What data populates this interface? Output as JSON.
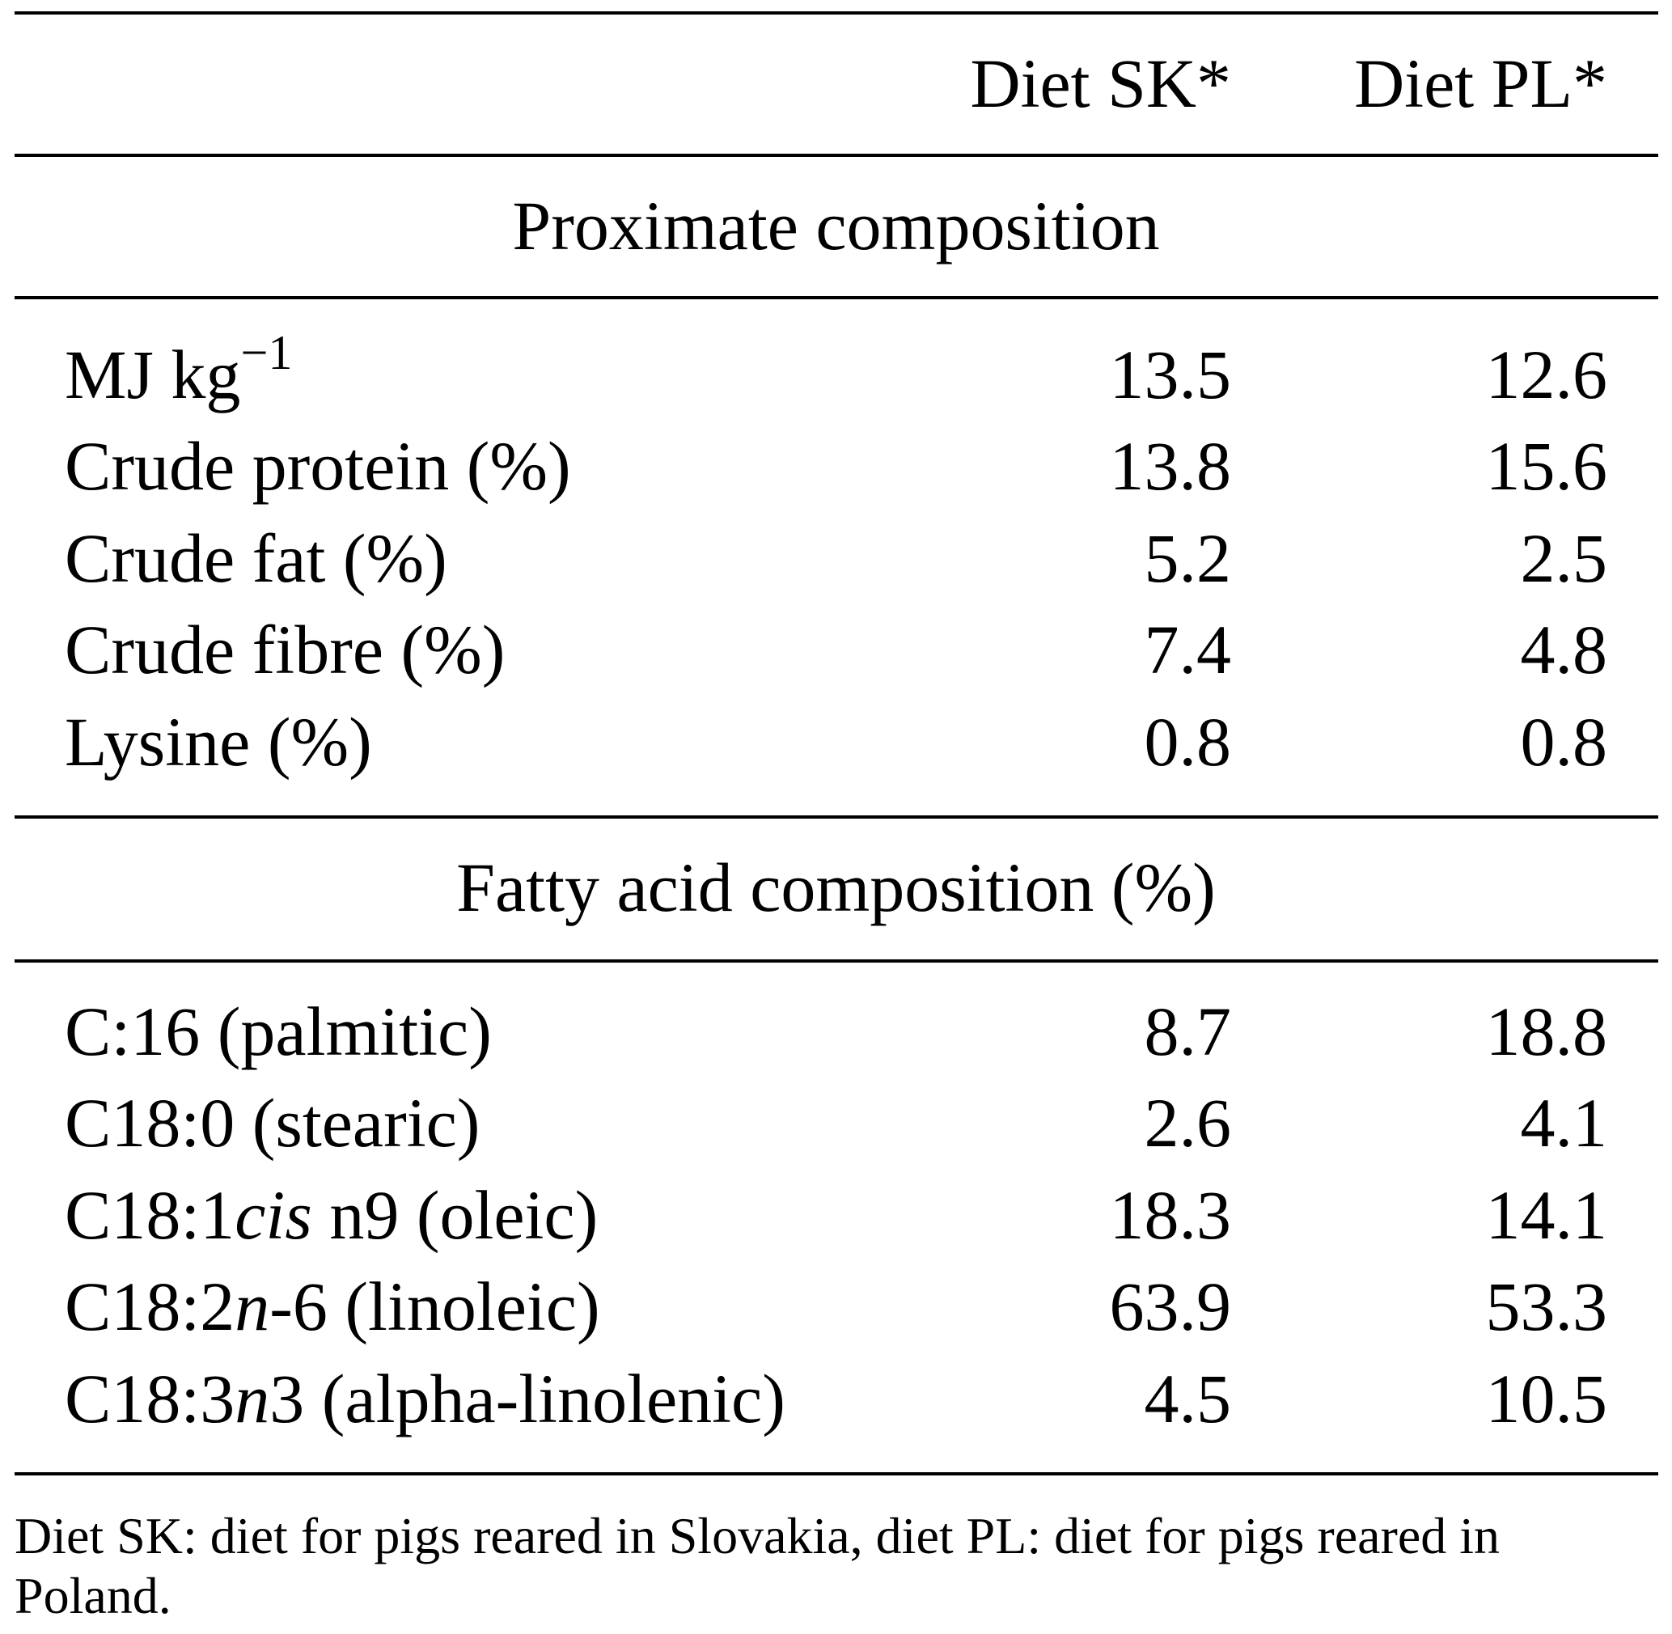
{
  "header": {
    "col_sk": "Diet SK*",
    "col_pl": "Diet PL*"
  },
  "sections": [
    {
      "title": "Proximate composition",
      "rows": [
        {
          "label": "MJ kg",
          "label_sup": "−1",
          "sk": "13.5",
          "pl": "12.6"
        },
        {
          "label": "Crude protein (%)",
          "sk": "13.8",
          "pl": "15.6"
        },
        {
          "label": "Crude fat (%)",
          "sk": "5.2",
          "pl": "2.5"
        },
        {
          "label": "Crude fibre (%)",
          "sk": "7.4",
          "pl": "4.8"
        },
        {
          "label": "Lysine (%)",
          "sk": "0.8",
          "pl": "0.8"
        }
      ]
    },
    {
      "title": "Fatty acid composition (%)",
      "rows": [
        {
          "label": "C:16 (palmitic)",
          "sk": "8.7",
          "pl": "18.8"
        },
        {
          "label": "C18:0 (stearic)",
          "sk": "2.6",
          "pl": "4.1"
        },
        {
          "label_pre": "C18:1",
          "label_ital": "cis",
          "label_post": " n9 (oleic)",
          "sk": "18.3",
          "pl": "14.1"
        },
        {
          "label_pre": "C18:2",
          "label_ital": "n",
          "label_post": "-6 (linoleic)",
          "sk": "63.9",
          "pl": "53.3"
        },
        {
          "label_pre": "C18:3",
          "label_ital": "n",
          "label_post": "3 (alpha-linolenic)",
          "sk": "4.5",
          "pl": "10.5"
        }
      ]
    }
  ],
  "footnote": "Diet SK: diet for pigs reared in Slovakia, diet PL: diet for pigs reared in Poland."
}
